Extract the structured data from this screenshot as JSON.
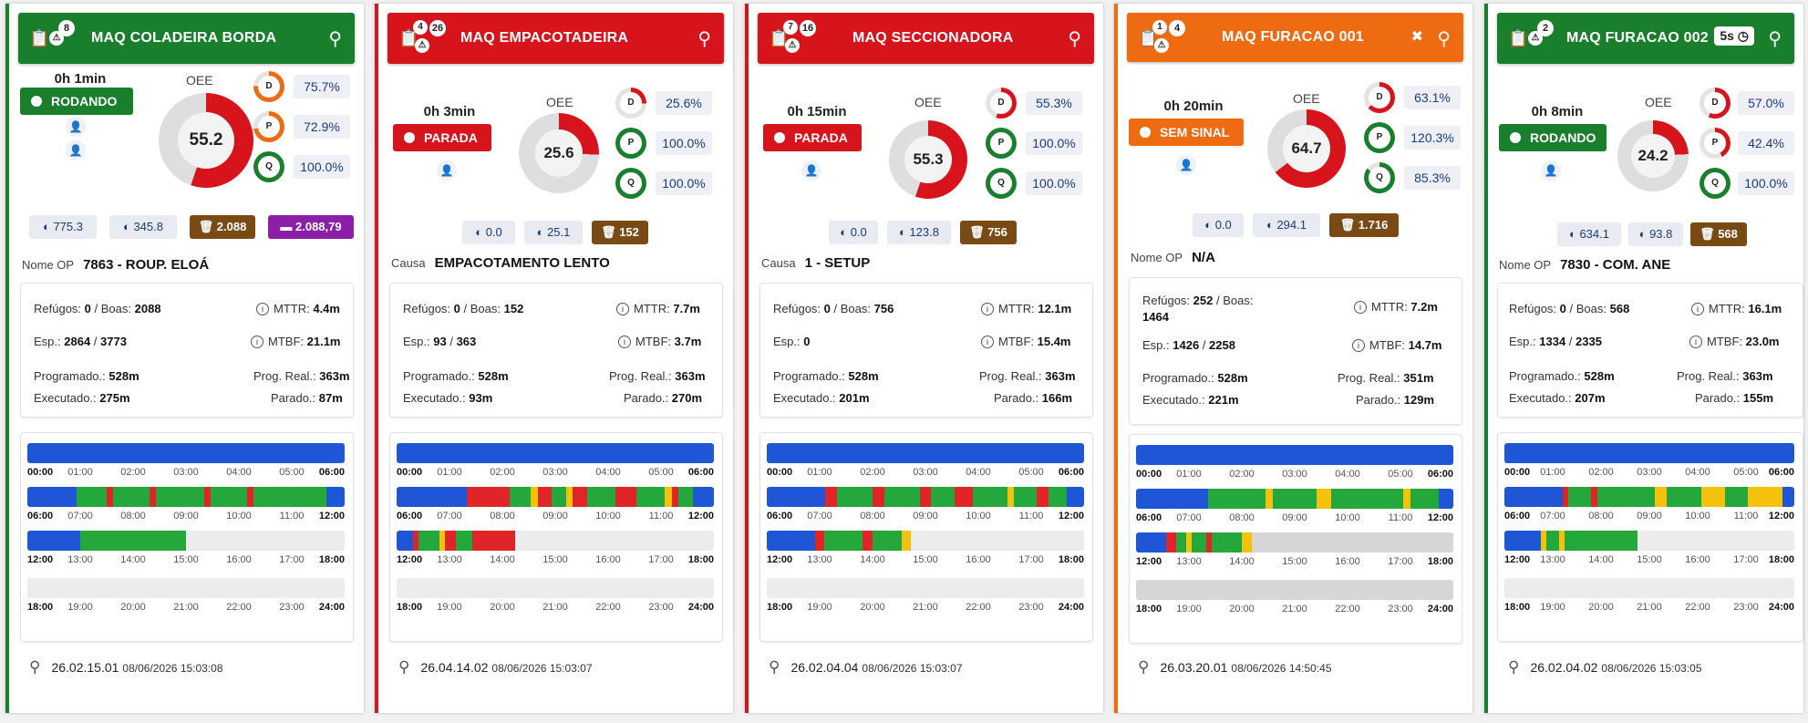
{
  "colors": {
    "green": "#1a7f2c",
    "red": "#d7131c",
    "orange": "#ee6b12",
    "blue": "#1f56d6",
    "seg_green": "#24a83b",
    "seg_red": "#e0252a",
    "seg_yellow": "#f4c20d"
  },
  "ticks": {
    "row1": [
      "00:00",
      "01:00",
      "02:00",
      "03:00",
      "04:00",
      "05:00",
      "06:00"
    ],
    "row2": [
      "06:00",
      "07:00",
      "08:00",
      "09:00",
      "10:00",
      "11:00",
      "12:00"
    ],
    "row3": [
      "12:00",
      "13:00",
      "14:00",
      "15:00",
      "16:00",
      "17:00",
      "18:00"
    ],
    "row4": [
      "18:00",
      "19:00",
      "20:00",
      "21:00",
      "22:00",
      "23:00",
      "24:00"
    ]
  },
  "machines": [
    {
      "title": "MAQ COLADEIRA BORDA",
      "badge_a": "8",
      "badge_b": "",
      "elapsed": "0h 1min",
      "status": "RODANDO",
      "oee_label": "OEE",
      "oee": "55.2",
      "oee_pct": 55.2,
      "d": "75.7%",
      "p": "72.9%",
      "q": "100.0%",
      "d_pct": 75.7,
      "p_pct": 72.9,
      "q_pct": 100,
      "chip1": "775.3",
      "chip2": "345.8",
      "chip3": "2.088",
      "chip4": "2.088,79",
      "op_label": "Nome OP",
      "op_value": "7863 - ROUP. ELOÁ",
      "refugos": "0",
      "boas": "2088",
      "mttr": "4.4m",
      "esp": "2864",
      "esp2": "3773",
      "mtbf": "21.1m",
      "programado": "528m",
      "prog_real": "363m",
      "executado": "275m",
      "parado": "87m",
      "foot_code": "26.02.15.01",
      "foot_time": "08/06/2026 15:03:08"
    },
    {
      "title": "MAQ EMPACOTADEIRA",
      "badge_a": "4",
      "badge_b": "26",
      "elapsed": "0h 3min",
      "status": "PARADA",
      "oee_label": "OEE",
      "oee": "25.6",
      "oee_pct": 25.6,
      "d": "25.6%",
      "p": "100.0%",
      "q": "100.0%",
      "d_pct": 25.6,
      "p_pct": 100,
      "q_pct": 100,
      "chip1": "0.0",
      "chip2": "25.1",
      "chip3": "152",
      "chip4": "",
      "op_label": "Causa",
      "op_value": "EMPACOTAMENTO LENTO",
      "refugos": "0",
      "boas": "152",
      "mttr": "7.7m",
      "esp": "93",
      "esp2": "363",
      "mtbf": "3.7m",
      "programado": "528m",
      "prog_real": "363m",
      "executado": "93m",
      "parado": "270m",
      "foot_code": "26.04.14.02",
      "foot_time": "08/06/2026 15:03:07"
    },
    {
      "title": "MAQ SECCIONADORA",
      "badge_a": "7",
      "badge_b": "16",
      "elapsed": "0h 15min",
      "status": "PARADA",
      "oee_label": "OEE",
      "oee": "55.3",
      "oee_pct": 55.3,
      "d": "55.3%",
      "p": "100.0%",
      "q": "100.0%",
      "d_pct": 55.3,
      "p_pct": 100,
      "q_pct": 100,
      "chip1": "0.0",
      "chip2": "123.8",
      "chip3": "756",
      "chip4": "",
      "op_label": "Causa",
      "op_value": "1 - SETUP",
      "refugos": "0",
      "boas": "756",
      "mttr": "12.1m",
      "esp": "0",
      "esp2": "",
      "mtbf": "15.4m",
      "programado": "528m",
      "prog_real": "363m",
      "executado": "201m",
      "parado": "166m",
      "foot_code": "26.02.04.04",
      "foot_time": "08/06/2026 15:03:07"
    },
    {
      "title": "MAQ FURACAO 001",
      "badge_a": "1",
      "badge_b": "4",
      "elapsed": "0h 20min",
      "status": "SEM SINAL",
      "oee_label": "OEE",
      "oee": "64.7",
      "oee_pct": 64.7,
      "d": "63.1%",
      "p": "120.3%",
      "q": "85.3%",
      "d_pct": 63.1,
      "p_pct": 100,
      "q_pct": 85.3,
      "chip1": "0.0",
      "chip2": "294.1",
      "chip3": "1.716",
      "chip4": "",
      "op_label": "Nome OP",
      "op_value": "N/A",
      "refugos": "252",
      "boas": "1464",
      "mttr": "7.2m",
      "esp": "1426",
      "esp2": "2258",
      "mtbf": "14.7m",
      "programado": "528m",
      "prog_real": "351m",
      "executado": "221m",
      "parado": "129m",
      "foot_code": "26.03.20.01",
      "foot_time": "08/06/2026 14:50:45"
    },
    {
      "title": "MAQ FURACAO 002",
      "badge_a": "2",
      "badge_b": "",
      "timer": "5s",
      "elapsed": "0h 8min",
      "status": "RODANDO",
      "oee_label": "OEE",
      "oee": "24.2",
      "oee_pct": 24.2,
      "d": "57.0%",
      "p": "42.4%",
      "q": "100.0%",
      "d_pct": 57,
      "p_pct": 42.4,
      "q_pct": 100,
      "chip1": "634.1",
      "chip2": "93.8",
      "chip3": "568",
      "chip4": "",
      "op_label": "Nome OP",
      "op_value": "7830 - COM. ANE",
      "refugos": "0",
      "boas": "568",
      "mttr": "16.1m",
      "esp": "1334",
      "esp2": "2335",
      "mtbf": "23.0m",
      "programado": "528m",
      "prog_real": "363m",
      "executado": "207m",
      "parado": "155m",
      "foot_code": "26.02.04.02",
      "foot_time": "08/06/2026 15:03:05"
    }
  ],
  "labels": {
    "refugos": "Refúgos:",
    "boas": "/ Boas:",
    "mttr": "MTTR:",
    "esp": "Esp.:",
    "mtbf": "MTBF:",
    "programado": "Programado.:",
    "prog_real": "Prog. Real.:",
    "executado": "Executado.:",
    "parado": "Parado.:"
  }
}
